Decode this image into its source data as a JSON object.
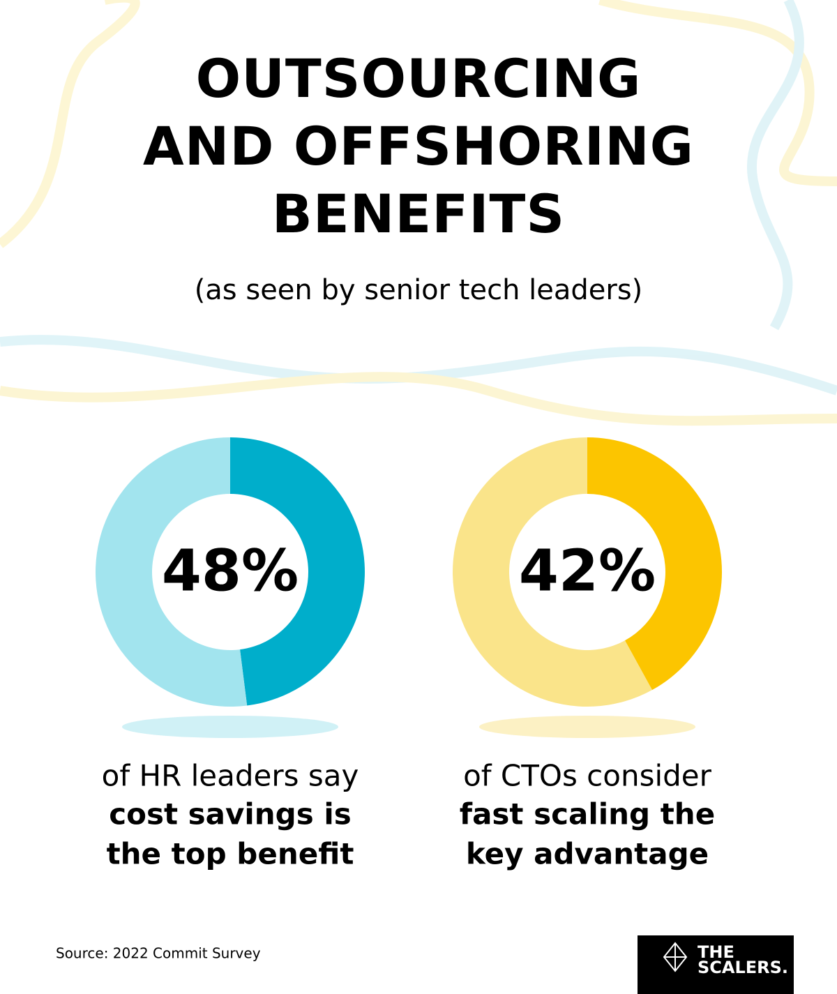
{
  "title": [
    "OUTSOURCING",
    "AND OFFSHORING",
    "BENEFITS"
  ],
  "subtitle": "(as seen by senior tech leaders)",
  "source": "Source: 2022 Commit Survey",
  "logo": [
    "THE",
    "SCALERS."
  ],
  "chart_data": [
    {
      "type": "donut",
      "values": [
        48,
        52
      ],
      "value_labels": [
        "48%",
        null
      ],
      "colors": [
        "#00aecb",
        "#a2e4ee"
      ],
      "caption": "of HR leaders say",
      "caption_emphasis": [
        "cost savings is",
        "the top benefit"
      ]
    },
    {
      "type": "donut",
      "values": [
        42,
        58
      ],
      "value_labels": [
        "42%",
        null
      ],
      "colors": [
        "#fcc500",
        "#fae48a"
      ],
      "caption": "of CTOs consider",
      "caption_emphasis": [
        "fast scaling the",
        "key advantage"
      ]
    }
  ]
}
